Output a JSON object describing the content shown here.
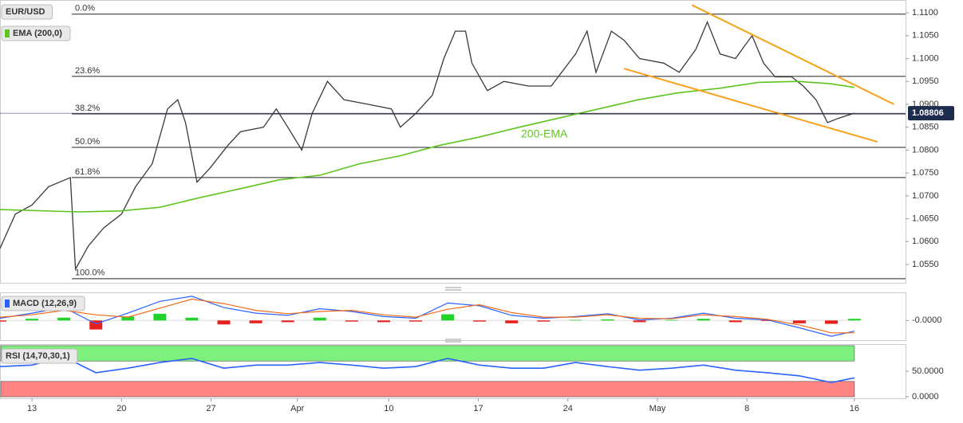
{
  "chart_data": [
    {
      "type": "line",
      "title": "EUR/USD",
      "xlim": [
        -2.5,
        68.3
      ],
      "ylim": [
        1.051,
        1.1128
      ],
      "yticks": [
        {
          "value": 1.11,
          "label": "1.1100"
        },
        {
          "value": 1.105,
          "label": "1.1050"
        },
        {
          "value": 1.1,
          "label": "1.1000"
        },
        {
          "value": 1.095,
          "label": "1.0950"
        },
        {
          "value": 1.09,
          "label": "1.0900"
        },
        {
          "value": 1.085,
          "label": "1.0850"
        },
        {
          "value": 1.08,
          "label": "1.0800"
        },
        {
          "value": 1.075,
          "label": "1.0750"
        },
        {
          "value": 1.07,
          "label": "1.0700"
        },
        {
          "value": 1.065,
          "label": "1.0650"
        },
        {
          "value": 1.06,
          "label": "1.0600"
        },
        {
          "value": 1.055,
          "label": "1.0550"
        }
      ],
      "series": [
        {
          "color": "#3a3a3a",
          "x": [
            -2.5,
            -1.3,
            0,
            1.3,
            3,
            3.4,
            4.4,
            5.6,
            7,
            8.1,
            9.4,
            10.6,
            11.4,
            12,
            12.9,
            13.9,
            15.3,
            16.3,
            18.1,
            19.1,
            20,
            21.1,
            21.9,
            23.1,
            24.4,
            26.3,
            28.1,
            28.8,
            30,
            31.3,
            32.2,
            33.1,
            33.9,
            34.4,
            35.6,
            36.9,
            38.8,
            40.6,
            42.5,
            43.4,
            44.1,
            45.3,
            46.3,
            47.5,
            49.4,
            50.6,
            51.9,
            52.8,
            53.8,
            55,
            56.3,
            57.2,
            58.1,
            59.4,
            60.3,
            61.3,
            62.2,
            63.1,
            64.3
          ],
          "values": [
            1.0585,
            1.066,
            1.068,
            1.072,
            1.074,
            1.054,
            1.059,
            1.063,
            1.066,
            1.072,
            1.077,
            1.089,
            1.091,
            1.086,
            1.073,
            1.076,
            1.081,
            1.084,
            1.085,
            1.089,
            1.085,
            1.08,
            1.088,
            1.095,
            1.091,
            1.09,
            1.089,
            1.085,
            1.088,
            1.092,
            1.1,
            1.106,
            1.106,
            1.099,
            1.093,
            1.095,
            1.094,
            1.094,
            1.101,
            1.106,
            1.097,
            1.106,
            1.104,
            1.1,
            1.099,
            1.097,
            1.102,
            1.108,
            1.101,
            1.1,
            1.105,
            1.099,
            1.096,
            1.096,
            1.094,
            1.091,
            1.086,
            1.087,
            1.08806
          ]
        },
        {
          "name": "EMA (200,0)",
          "color": "#5ec41f",
          "x": [
            -2.5,
            3.7,
            6.9,
            10,
            13.1,
            16.2,
            19.3,
            22.5,
            25.6,
            28.7,
            31.8,
            34.9,
            38.1,
            41.2,
            44.3,
            47.4,
            50.5,
            53.7,
            56.8,
            59.9,
            62.4,
            64.3
          ],
          "values": [
            1.067,
            1.0665,
            1.0667,
            1.0675,
            1.0696,
            1.0715,
            1.0735,
            1.0745,
            1.077,
            1.0787,
            1.081,
            1.0828,
            1.085,
            1.087,
            1.089,
            1.091,
            1.0925,
            1.0935,
            1.0948,
            1.095,
            1.0945,
            1.0937
          ]
        }
      ],
      "annotation": "200-EMA",
      "levels": [
        {
          "label": "0.0%",
          "value": 1.1097
        },
        {
          "label": "23.6%",
          "value": 1.0961
        },
        {
          "label": "38.2%",
          "value": 1.0879
        },
        {
          "label": "50.0%",
          "value": 1.0806
        },
        {
          "label": "61.8%",
          "value": 1.074
        },
        {
          "label": "100.0%",
          "value": 1.0519
        }
      ],
      "trendlines": [
        {
          "color": "#f7a21b",
          "x": [
            51.6,
            67.4
          ],
          "y": [
            1.1117,
            1.09
          ]
        },
        {
          "color": "#f7a21b",
          "x": [
            46.3,
            66.1
          ],
          "y": [
            1.0978,
            1.0818
          ]
        }
      ]
    },
    {
      "type": "macd",
      "title": "MACD (12,26,9)",
      "xlim": [
        -2.5,
        68.3
      ],
      "ylim": [
        -0.0035,
        0.005
      ],
      "yticks": [
        {
          "value": 0,
          "label": "-0.0000"
        }
      ],
      "x": [
        -2.5,
        0,
        2.5,
        5,
        7.5,
        10,
        12.5,
        15,
        17.5,
        20,
        22.5,
        25,
        27.5,
        30,
        32.5,
        35,
        37.5,
        40,
        42.5,
        45,
        47.5,
        50,
        52.5,
        55,
        57.5,
        60,
        62.5,
        64.3
      ],
      "series": [
        {
          "color": "#2962ff",
          "values": [
            0.0004,
            0.0013,
            0.0023,
            -0.0006,
            0.0013,
            0.0034,
            0.0043,
            0.0023,
            0.0013,
            0.0009,
            0.0021,
            0.0016,
            0.0007,
            0.0004,
            0.0031,
            0.0026,
            0.0009,
            0.0004,
            0.0007,
            0.0012,
            0.0001,
            0.0004,
            0.0013,
            0.0004,
            0.0001,
            -0.0013,
            -0.0028,
            -0.0019
          ]
        },
        {
          "color": "#f26b1d",
          "values": [
            0.0006,
            0.001,
            0.0018,
            0.001,
            0.0006,
            0.0022,
            0.0038,
            0.003,
            0.0018,
            0.0012,
            0.0016,
            0.0018,
            0.001,
            0.0006,
            0.002,
            0.0028,
            0.0014,
            0.0006,
            0.0006,
            0.001,
            0.0004,
            0.0003,
            0.001,
            0.0007,
            0.0002,
            -0.0008,
            -0.0022,
            -0.0022
          ]
        }
      ],
      "histogram": [
        -0.0002,
        0.0003,
        0.0005,
        -0.0016,
        0.0007,
        0.0012,
        0.0005,
        -0.0007,
        -0.0005,
        -0.0003,
        0.0005,
        -0.0002,
        -0.0003,
        -0.0002,
        0.0011,
        -0.0002,
        -0.0005,
        -0.0002,
        0.0001,
        0.0002,
        -0.0003,
        0.0001,
        0.0003,
        -0.0003,
        -0.0001,
        -0.0005,
        -0.0006,
        0.0003
      ],
      "colors": {
        "up": "#22d42a",
        "down": "#e8201b"
      }
    },
    {
      "type": "line",
      "title": "RSI (14,70,30,1)",
      "xlim": [
        -2.5,
        68.3
      ],
      "ylim": [
        -3,
        103
      ],
      "yticks": [
        {
          "value": 50,
          "label": "50.0000"
        },
        {
          "value": 0,
          "label": "0.0000"
        }
      ],
      "bands": [
        {
          "from": 70,
          "to": 100,
          "color": "#7ef07e"
        },
        {
          "from": 0,
          "to": 30,
          "color": "#ff8585"
        }
      ],
      "xticks": [
        {
          "value": 0,
          "label": "13"
        },
        {
          "value": 7,
          "label": "20"
        },
        {
          "value": 14,
          "label": "27"
        },
        {
          "value": 20.75,
          "label": "Apr"
        },
        {
          "value": 27.9,
          "label": "10"
        },
        {
          "value": 34.9,
          "label": "17"
        },
        {
          "value": 41.9,
          "label": "24"
        },
        {
          "value": 48.9,
          "label": "May"
        },
        {
          "value": 55.9,
          "label": "8"
        },
        {
          "value": 64.3,
          "label": "16"
        }
      ],
      "series": [
        {
          "color": "#2962ff",
          "x": [
            -2.5,
            0,
            2.5,
            5,
            7.5,
            10,
            12.5,
            15,
            17.5,
            20,
            22.5,
            25,
            27.5,
            30,
            32.5,
            35,
            37.5,
            40,
            42.5,
            45,
            47.5,
            50,
            52.5,
            55,
            57.5,
            60,
            62.5,
            64.3
          ],
          "values": [
            59,
            62,
            78,
            47,
            56,
            67,
            75,
            56,
            62,
            62,
            67,
            62,
            56,
            59,
            75,
            62,
            56,
            56,
            67,
            59,
            52,
            56,
            62,
            52,
            47,
            41,
            28,
            37
          ]
        }
      ]
    }
  ]
}
